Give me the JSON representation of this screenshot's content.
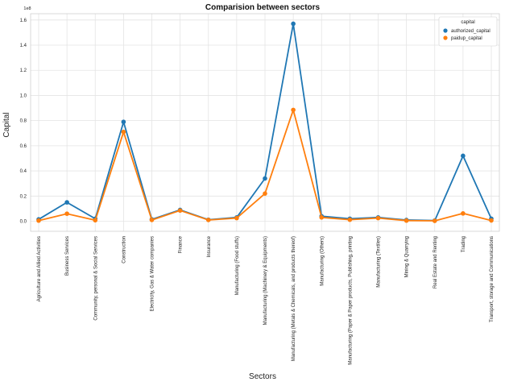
{
  "chart_data": {
    "type": "line",
    "title": "Comparision between sectors",
    "xlabel": "Sectors",
    "ylabel": "Capital",
    "y_offset_label": "1e8",
    "ylim": [
      -0.08,
      1.65
    ],
    "yticks": [
      "0.0",
      "0.2",
      "0.4",
      "0.6",
      "0.8",
      "1.0",
      "1.2",
      "1.4",
      "1.6"
    ],
    "grid": true,
    "legend_placement": "top-right",
    "legend_title": "capital",
    "categories": [
      "Agriculture and Allied Activities",
      "Business Services",
      "Community, personal & Social Services",
      "Construction",
      "Electricity, Gas & Water companies",
      "Finance",
      "Insurance",
      "Manufacturing (Food stuffs)",
      "Manufacturing (Machinery & Equipments)",
      "Manufacturing (Metals & Chemicals, and products thereof)",
      "Manufacturing (Others)",
      "Manufacturing (Paper & Paper products, Publishing, printing",
      "Manufacturing (Textiles)",
      "Mining & Quarrying",
      "Real Estate and Renting",
      "Trading",
      "Transport, storage and Communications"
    ],
    "series": [
      {
        "name": "authorized_capital",
        "color": "#1f77b4",
        "values": [
          0.015,
          0.15,
          0.02,
          0.79,
          0.015,
          0.09,
          0.012,
          0.03,
          0.34,
          1.57,
          0.04,
          0.02,
          0.03,
          0.01,
          0.005,
          0.52,
          0.02
        ]
      },
      {
        "name": "paidup_capital",
        "color": "#ff7f0e",
        "values": [
          0.005,
          0.06,
          0.008,
          0.71,
          0.01,
          0.085,
          0.01,
          0.025,
          0.22,
          0.885,
          0.03,
          0.012,
          0.025,
          0.005,
          0.003,
          0.062,
          0.006
        ]
      }
    ]
  }
}
